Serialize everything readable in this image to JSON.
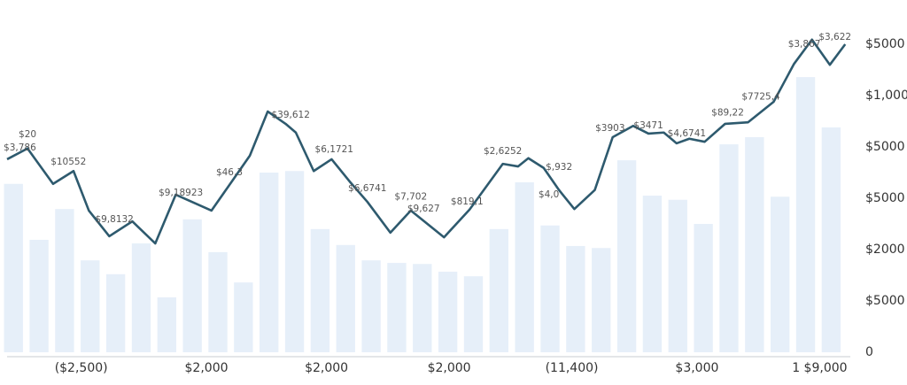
{
  "chart_data": {
    "type": "bar_line",
    "bar_color": "#e6eff9",
    "line_color": "#2e5a6e",
    "bars": [
      3280,
      2190,
      2790,
      1790,
      1520,
      2120,
      1070,
      2590,
      1950,
      1360,
      3500,
      3530,
      2400,
      2090,
      1790,
      1740,
      1720,
      1570,
      1480,
      2400,
      3310,
      2470,
      2070,
      2030,
      3740,
      3050,
      2970,
      2500,
      4050,
      4190,
      3030,
      5360,
      4380
    ],
    "line": {
      "x": [
        0,
        0.8,
        1.8,
        2.6,
        3.2,
        4.0,
        4.9,
        5.8,
        6.6,
        8.0,
        8.8,
        9.5,
        10.2,
        10.9,
        11.3,
        12.0,
        12.7,
        13.4,
        14.1,
        15.0,
        15.8,
        17.1,
        18.1,
        19.4,
        20.0,
        20.4,
        21.0,
        21.6,
        22.2,
        23.0,
        23.7,
        24.5,
        25.1,
        25.7,
        26.2,
        26.7,
        27.3,
        28.1,
        29.0,
        30.0,
        30.8,
        31.5,
        32.2,
        32.8
      ],
      "values": [
        3760,
        3970,
        3280,
        3530,
        2760,
        2260,
        2550,
        2120,
        3070,
        2760,
        3330,
        3830,
        4690,
        4450,
        4280,
        3530,
        3760,
        3330,
        2930,
        2330,
        2760,
        2240,
        2780,
        3670,
        3620,
        3780,
        3590,
        3160,
        2790,
        3160,
        4190,
        4410,
        4260,
        4280,
        4070,
        4160,
        4100,
        4450,
        4480,
        4880,
        5620,
        6090,
        5600,
        6000
      ]
    },
    "annotations": [
      {
        "text": "$20",
        "x": 0.8,
        "y": 4240
      },
      {
        "text": "$3,786",
        "x": 0.5,
        "y": 3980
      },
      {
        "text": "$10552",
        "x": 2.4,
        "y": 3710
      },
      {
        "text": "$9,8132",
        "x": 4.2,
        "y": 2590
      },
      {
        "text": "$9,18923",
        "x": 6.8,
        "y": 3100
      },
      {
        "text": "$46,3",
        "x": 8.7,
        "y": 3500
      },
      {
        "text": "$39,612",
        "x": 11.1,
        "y": 4620
      },
      {
        "text": "$6,1721",
        "x": 12.8,
        "y": 3950
      },
      {
        "text": "$6,6741",
        "x": 14.1,
        "y": 3190
      },
      {
        "text": "$7,702",
        "x": 15.8,
        "y": 3030
      },
      {
        "text": "$9,627",
        "x": 16.3,
        "y": 2790
      },
      {
        "text": "$819,1",
        "x": 18.0,
        "y": 2930
      },
      {
        "text": "$2,6252",
        "x": 19.4,
        "y": 3910
      },
      {
        "text": "$,932",
        "x": 21.6,
        "y": 3600
      },
      {
        "text": "$4,0",
        "x": 21.2,
        "y": 3070
      },
      {
        "text": "$3903",
        "x": 23.6,
        "y": 4360
      },
      {
        "text": "$3471",
        "x": 25.1,
        "y": 4410
      },
      {
        "text": "$4,6741",
        "x": 26.6,
        "y": 4260
      },
      {
        "text": "$89,22",
        "x": 28.2,
        "y": 4660
      },
      {
        "text": "$7725,4",
        "x": 29.5,
        "y": 4970
      },
      {
        "text": "$3,867",
        "x": 31.2,
        "y": 6000
      },
      {
        "text": "$3,622",
        "x": 32.4,
        "y": 6140
      }
    ],
    "xlim": [
      0,
      33
    ],
    "xticks": [
      {
        "value": 2.9,
        "label": "($2,500)"
      },
      {
        "value": 7.8,
        "label": "$2,000"
      },
      {
        "value": 12.5,
        "label": "$2,000"
      },
      {
        "value": 17.3,
        "label": "$2,000"
      },
      {
        "value": 22.1,
        "label": "(11,400)"
      },
      {
        "value": 27.0,
        "label": "$3,000"
      },
      {
        "value": 31.8,
        "label": "1 $9,000"
      }
    ],
    "ylim": [
      0,
      6500
    ],
    "yticks": [
      0,
      {
        "value": 1000,
        "label": "$5000"
      },
      {
        "value": 2000,
        "label": "$2000"
      },
      {
        "value": 3000,
        "label": "$5000"
      },
      {
        "value": 4000,
        "label": "$5000"
      },
      {
        "value": 5000,
        "label": "$1,000"
      },
      {
        "value": 6000,
        "label": "$5000"
      }
    ]
  }
}
